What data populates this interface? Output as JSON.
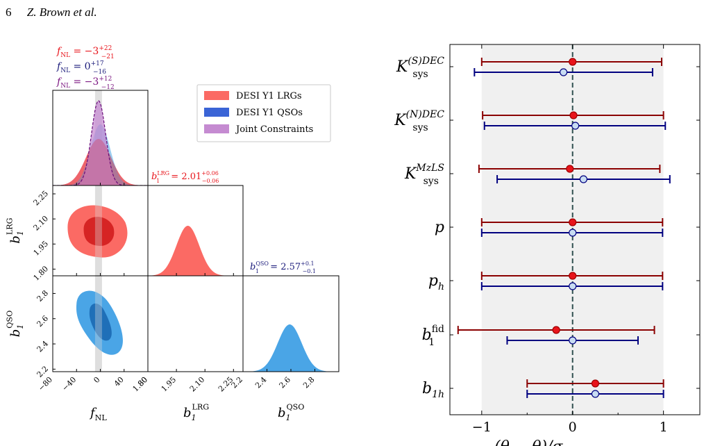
{
  "header": {
    "page_number": "6",
    "authors": "Z. Brown et al."
  },
  "colors": {
    "lrg": "#fb6a64",
    "lrg_dark": "#d62424",
    "qso": "#4aa5e6",
    "qso_dark": "#1f6fb8",
    "joint": "#c58bd1",
    "joint_line": "#6a0d7a",
    "red_pt": "#e8141b",
    "red_bar": "#8b0000",
    "blue_bar": "#000080",
    "blue_pt": "#c8dcf2"
  },
  "legend": [
    "DESI Y1 LRGs",
    "DESI Y1 QSOs",
    "Joint Constraints"
  ],
  "fnl_labels": [
    {
      "sym": "f",
      "sub": "NL",
      "val": "−3",
      "sup": "+22",
      "lo": "−21",
      "color": "#e8141b"
    },
    {
      "sym": "f",
      "sub": "NL",
      "val": "0",
      "sup": "+17",
      "lo": "−16",
      "color": "#1a1a7a"
    },
    {
      "sym": "f",
      "sub": "NL",
      "val": "−3",
      "sup": "+12",
      "lo": "−12",
      "color": "#7a137f"
    }
  ],
  "b1lrg_label": {
    "sup_tag": "LRG",
    "val": "2.01",
    "sup": "+0.06",
    "lo": "−0.06"
  },
  "b1qso_label": {
    "sup_tag": "QSO",
    "val": "2.57",
    "sup": "+0.1",
    "lo": "−0.1"
  },
  "corner_axes": {
    "fnl_ticks": [
      "−80",
      "−40",
      "0",
      "40",
      "80"
    ],
    "lrg_ticks": [
      "1.80",
      "1.95",
      "2.10",
      "2.25"
    ],
    "qso_ticks": [
      "2.2",
      "2.4",
      "2.6",
      "2.8"
    ],
    "xlabel_fnl": {
      "sym": "f",
      "sub": "NL"
    },
    "xlabel_lrg": {
      "sym": "b",
      "sub": "1",
      "sup": "LRG"
    },
    "xlabel_qso": {
      "sym": "b",
      "sub": "1",
      "sup": "QSO"
    }
  },
  "chart_data": {
    "type": "scatter",
    "xlabel": "(θ − θ)/σ",
    "xlim": [
      -1.35,
      1.4
    ],
    "xticks": [
      "−1",
      "0",
      "1"
    ],
    "shaded_band": [
      -1,
      1
    ],
    "reference_line": 0,
    "categories": [
      {
        "sym": "K",
        "sub": "sys",
        "sup": "(S)DEC"
      },
      {
        "sym": "K",
        "sub": "sys",
        "sup": "(N)DEC"
      },
      {
        "sym": "K",
        "sub": "sys",
        "sup": "MzLS"
      },
      {
        "sym": "p",
        "sub": "",
        "sup": ""
      },
      {
        "sym": "p",
        "sub": "h",
        "sup": ""
      },
      {
        "sym": "b",
        "sub": "1",
        "sup": "fid"
      },
      {
        "sym": "b",
        "sub": "1h",
        "sup": ""
      }
    ],
    "series": [
      {
        "values": [
          0.0,
          0.01,
          -0.03,
          0.0,
          0.0,
          -0.18,
          0.25
        ],
        "err_lo": [
          1.0,
          1.0,
          1.0,
          1.0,
          1.0,
          1.08,
          0.75
        ],
        "err_hi": [
          0.98,
          0.99,
          0.99,
          0.99,
          0.99,
          1.08,
          0.75
        ]
      },
      {
        "values": [
          -0.1,
          0.03,
          0.12,
          0.0,
          0.0,
          0.0,
          0.25
        ],
        "err_lo": [
          0.98,
          1.0,
          0.95,
          1.0,
          1.0,
          0.72,
          0.75
        ],
        "err_hi": [
          0.98,
          0.99,
          0.95,
          0.99,
          0.99,
          0.72,
          0.75
        ]
      }
    ]
  }
}
